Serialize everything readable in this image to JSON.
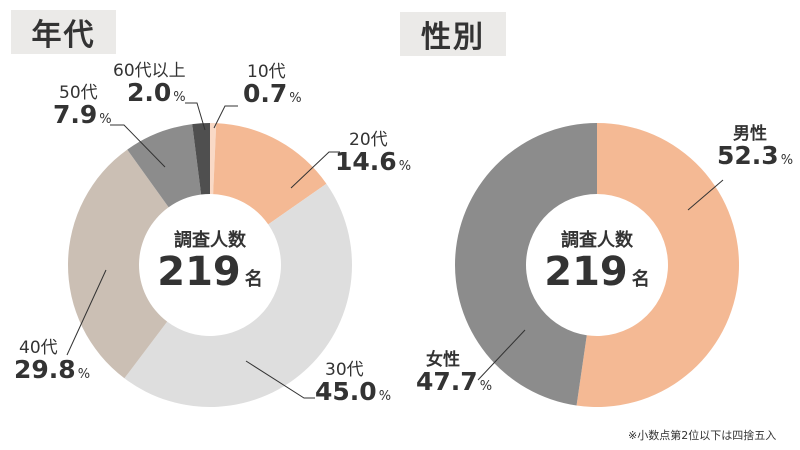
{
  "age": {
    "title": "年代",
    "center_label": "調査人数",
    "center_number": "219",
    "center_unit": "名",
    "segments": [
      {
        "category": "10代",
        "value": "0.7",
        "unit": "%",
        "color": "#f9d9c6"
      },
      {
        "category": "20代",
        "value": "14.6",
        "unit": "%",
        "color": "#f4b994"
      },
      {
        "category": "30代",
        "value": "45.0",
        "unit": "%",
        "color": "#dedede"
      },
      {
        "category": "40代",
        "value": "29.8",
        "unit": "%",
        "color": "#cbbfb4"
      },
      {
        "category": "50代",
        "value": "7.9",
        "unit": "%",
        "color": "#8c8c8c"
      },
      {
        "category": "60代以上",
        "value": "2.0",
        "unit": "%",
        "color": "#4f4f4f"
      }
    ]
  },
  "gender": {
    "title": "性別",
    "center_label": "調査人数",
    "center_number": "219",
    "center_unit": "名",
    "segments": [
      {
        "category": "男性",
        "value": "52.3",
        "unit": "%",
        "color": "#f4b994"
      },
      {
        "category": "女性",
        "value": "47.7",
        "unit": "%",
        "color": "#8c8c8c"
      }
    ]
  },
  "footnote": "※小数点第2位以下は四捨五入",
  "chart_data": [
    {
      "type": "pie",
      "title": "年代",
      "categories": [
        "10代",
        "20代",
        "30代",
        "40代",
        "50代",
        "60代以上"
      ],
      "values": [
        0.7,
        14.6,
        45.0,
        29.8,
        7.9,
        2.0
      ],
      "colors": [
        "#f9d9c6",
        "#f4b994",
        "#dedede",
        "#cbbfb4",
        "#8c8c8c",
        "#4f4f4f"
      ],
      "center_text": "調査人数 219名",
      "unit": "%"
    },
    {
      "type": "pie",
      "title": "性別",
      "categories": [
        "男性",
        "女性"
      ],
      "values": [
        52.3,
        47.7
      ],
      "colors": [
        "#f4b994",
        "#8c8c8c"
      ],
      "center_text": "調査人数 219名",
      "unit": "%"
    }
  ]
}
